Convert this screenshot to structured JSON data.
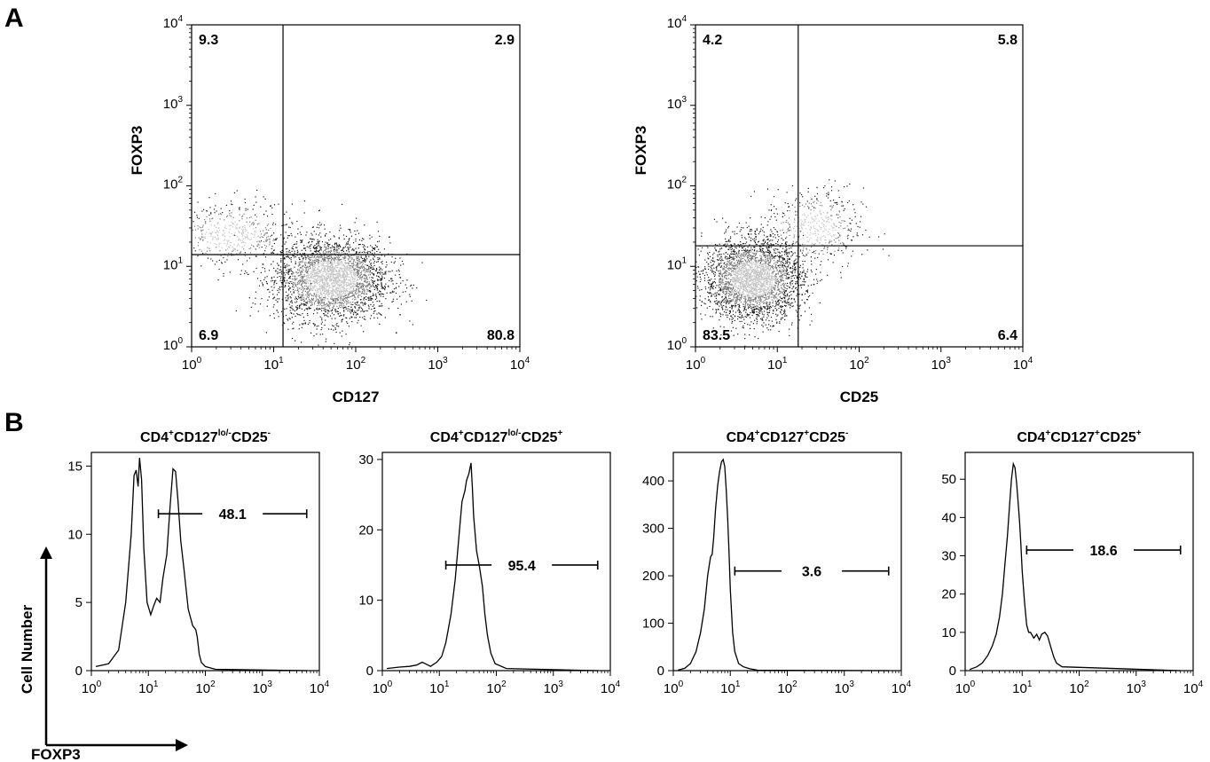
{
  "figure": {
    "panel_a_label": "A",
    "panel_b_label": "B",
    "corner_axes": {
      "y_label": "Cell Number",
      "x_label": "FOXP3"
    }
  },
  "chart_data": [
    {
      "type": "scatter",
      "panel": "A",
      "xlabel": "CD127",
      "ylabel": "FOXP3",
      "xscale": "log",
      "yscale": "log",
      "xlim": [
        1,
        10000
      ],
      "ylim": [
        1,
        10000
      ],
      "x_ticks": [
        1,
        10,
        100,
        1000,
        10000
      ],
      "y_ticks": [
        1,
        10,
        100,
        1000,
        10000
      ],
      "gate_x": 13,
      "gate_y": 14,
      "quadrants": {
        "upper_left": "9.3",
        "upper_right": "2.9",
        "lower_left": "6.9",
        "lower_right": "80.8"
      },
      "populations": [
        {
          "cx": 50,
          "cy": 7,
          "sx": 0.35,
          "sy": 0.26,
          "n": 3000
        },
        {
          "cx": 3,
          "cy": 25,
          "sx": 0.38,
          "sy": 0.2,
          "n": 500
        }
      ]
    },
    {
      "type": "scatter",
      "panel": "A",
      "xlabel": "CD25",
      "ylabel": "FOXP3",
      "xscale": "log",
      "yscale": "log",
      "xlim": [
        1,
        10000
      ],
      "ylim": [
        1,
        10000
      ],
      "x_ticks": [
        1,
        10,
        100,
        1000,
        10000
      ],
      "y_ticks": [
        1,
        10,
        100,
        1000,
        10000
      ],
      "gate_x": 18,
      "gate_y": 18,
      "quadrants": {
        "upper_left": "4.2",
        "upper_right": "5.8",
        "lower_left": "83.5",
        "lower_right": "6.4"
      },
      "populations": [
        {
          "cx": 5,
          "cy": 7,
          "sx": 0.3,
          "sy": 0.25,
          "n": 3000
        },
        {
          "cx": 28,
          "cy": 30,
          "sx": 0.3,
          "sy": 0.25,
          "n": 500
        }
      ]
    },
    {
      "type": "line",
      "panel": "B",
      "title_main": "CD4",
      "title_parts": [
        {
          "sup": "+",
          "text": "CD127"
        },
        {
          "sup": "lo/-",
          "text": "CD25"
        },
        {
          "sup": "-",
          "text": ""
        }
      ],
      "xscale": "log",
      "xlim": [
        1,
        10000
      ],
      "x_ticks": [
        1,
        10,
        100,
        1000,
        10000
      ],
      "ylim": [
        0,
        16
      ],
      "y_ticks": [
        0,
        5,
        10,
        15
      ],
      "gate": {
        "from": 15,
        "to": 6000,
        "y": 11.5,
        "label": "48.1"
      },
      "x": [
        1.2,
        2,
        3,
        4,
        5,
        5.6,
        6.1,
        6.6,
        7,
        7.6,
        8.3,
        9.5,
        11,
        12.5,
        14,
        16,
        18,
        21,
        24,
        27,
        30,
        33,
        37,
        42,
        50,
        60,
        68,
        72,
        78,
        85,
        100,
        150,
        6000
      ],
      "y": [
        0.3,
        0.5,
        1.5,
        5,
        10,
        14.3,
        14.7,
        13.5,
        15.6,
        14,
        9,
        5,
        4.1,
        4.8,
        5.3,
        5,
        6.8,
        8.5,
        12,
        14.8,
        14.6,
        12.5,
        9.5,
        7.5,
        4.5,
        3.3,
        3,
        2.5,
        1.2,
        0.6,
        0.3,
        0.1,
        0
      ]
    },
    {
      "type": "line",
      "panel": "B",
      "title_main": "CD4",
      "title_parts": [
        {
          "sup": "+",
          "text": "CD127"
        },
        {
          "sup": "lo/-",
          "text": "CD25"
        },
        {
          "sup": "+",
          "text": ""
        }
      ],
      "xscale": "log",
      "xlim": [
        1,
        10000
      ],
      "x_ticks": [
        1,
        10,
        100,
        1000,
        10000
      ],
      "ylim": [
        0,
        31
      ],
      "y_ticks": [
        0,
        10,
        20,
        30
      ],
      "gate": {
        "from": 13,
        "to": 6000,
        "y": 15,
        "label": "95.4"
      },
      "x": [
        1.2,
        2,
        3,
        4,
        5,
        6,
        7,
        9,
        11,
        13,
        16,
        19,
        22,
        25,
        28,
        30,
        33,
        36,
        38,
        40,
        45,
        50,
        57,
        63,
        70,
        80,
        95,
        150,
        6000
      ],
      "y": [
        0.3,
        0.5,
        0.6,
        0.8,
        1.2,
        0.9,
        0.6,
        1.2,
        2,
        4,
        8,
        13,
        19,
        24,
        25.5,
        27,
        28,
        29.5,
        26,
        22,
        17,
        15,
        12,
        8,
        5,
        2.5,
        1,
        0.3,
        0
      ]
    },
    {
      "type": "line",
      "panel": "B",
      "title_main": "CD4",
      "title_parts": [
        {
          "sup": "+",
          "text": "CD127"
        },
        {
          "sup": "+",
          "text": "CD25"
        },
        {
          "sup": "-",
          "text": ""
        }
      ],
      "xscale": "log",
      "xlim": [
        1,
        10000
      ],
      "x_ticks": [
        1,
        10,
        100,
        1000,
        10000
      ],
      "ylim": [
        0,
        460
      ],
      "y_ticks": [
        0,
        100,
        200,
        300,
        400
      ],
      "gate": {
        "from": 12,
        "to": 6000,
        "y": 210,
        "label": "3.6"
      },
      "x": [
        1.2,
        1.6,
        2,
        2.5,
        3,
        3.5,
        4,
        4.5,
        4.8,
        5.1,
        5.5,
        6,
        6.5,
        7,
        7.5,
        8,
        8.5,
        9,
        9.5,
        10,
        11,
        12,
        14,
        17,
        22,
        30,
        6000
      ],
      "y": [
        1,
        5,
        15,
        40,
        80,
        130,
        200,
        240,
        245,
        280,
        340,
        390,
        420,
        440,
        445,
        430,
        380,
        320,
        250,
        170,
        80,
        40,
        15,
        8,
        4,
        1,
        0
      ]
    },
    {
      "type": "line",
      "panel": "B",
      "title_main": "CD4",
      "title_parts": [
        {
          "sup": "+",
          "text": "CD127"
        },
        {
          "sup": "+",
          "text": "CD25"
        },
        {
          "sup": "+",
          "text": ""
        }
      ],
      "xscale": "log",
      "xlim": [
        1,
        10000
      ],
      "x_ticks": [
        1,
        10,
        100,
        1000,
        10000
      ],
      "ylim": [
        0,
        57
      ],
      "y_ticks": [
        0,
        10,
        20,
        30,
        40,
        50
      ],
      "gate": {
        "from": 12,
        "to": 6000,
        "y": 31.5,
        "label": "18.6"
      },
      "x": [
        1.2,
        1.6,
        2,
        2.5,
        3,
        3.5,
        4,
        4.5,
        5,
        5.5,
        6,
        6.5,
        7,
        7.5,
        8,
        8.5,
        9,
        9.5,
        10,
        11,
        12,
        13,
        14,
        16,
        18,
        20,
        22,
        25,
        28,
        32,
        36,
        40,
        50,
        6000
      ],
      "y": [
        0.3,
        1,
        2,
        4,
        6.5,
        9.5,
        14,
        20,
        28,
        35,
        43,
        50,
        54,
        53,
        49,
        44,
        39,
        33,
        26,
        18,
        12,
        10,
        10,
        8.5,
        9.5,
        8,
        9.5,
        10,
        9,
        6,
        3.5,
        2,
        1,
        0
      ]
    }
  ]
}
